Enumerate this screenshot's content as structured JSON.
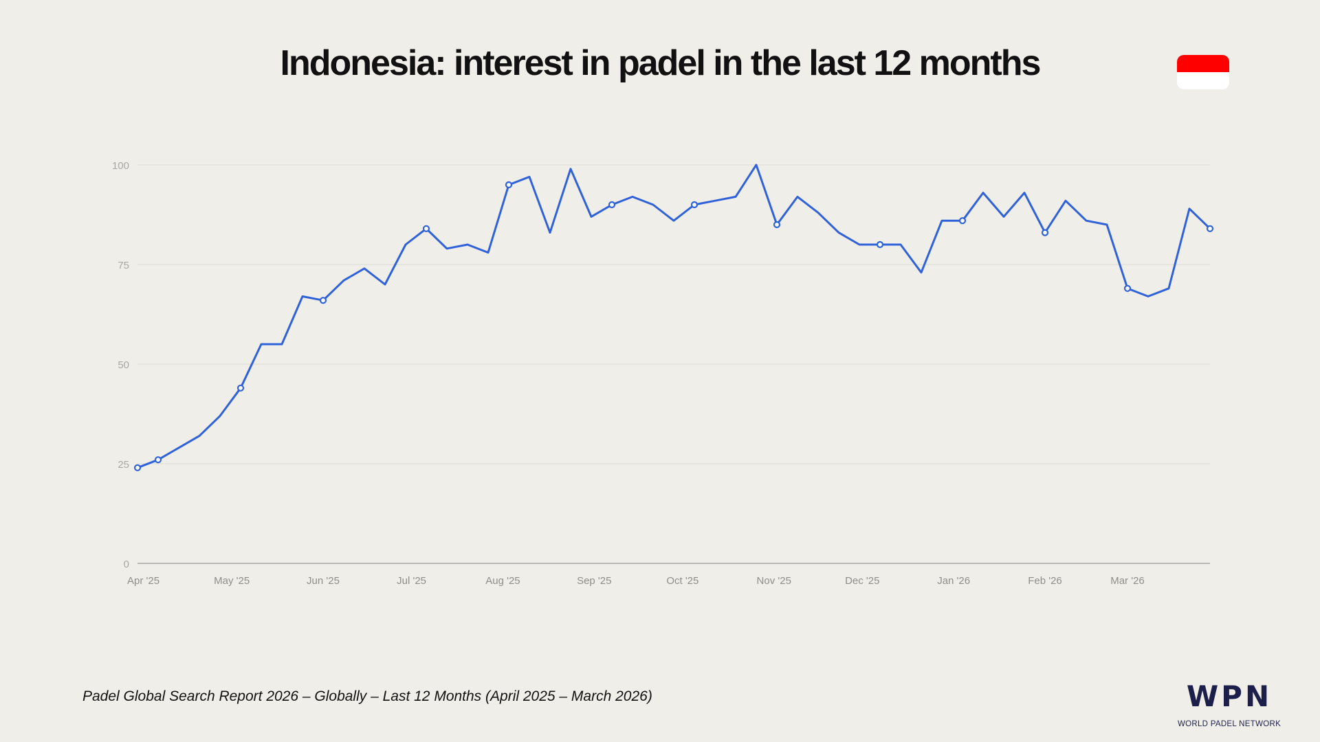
{
  "title": "Indonesia: interest in padel in the last 12 months",
  "flag": {
    "country": "Indonesia",
    "colors": [
      "#ff0000",
      "#ffffff"
    ]
  },
  "footnote": "Padel Global Search Report 2026 – Globally – Last 12 Months (April 2025 – March 2026)",
  "logo": {
    "mark": "WPN",
    "text": "WORLD PADEL NETWORK"
  },
  "chart_data": {
    "type": "line",
    "title": "",
    "xlabel": "",
    "ylabel": "",
    "ylim": [
      0,
      100
    ],
    "yticks": [
      0,
      25,
      50,
      75,
      100
    ],
    "grid": true,
    "line_color": "#2f62d9",
    "x_start": "2025-03-30",
    "x_interval": "weekly",
    "xticks": [
      {
        "date": "2025-04-01",
        "label": "Apr '25"
      },
      {
        "date": "2025-05-01",
        "label": "May '25"
      },
      {
        "date": "2025-06-01",
        "label": "Jun '25"
      },
      {
        "date": "2025-07-01",
        "label": "Jul '25"
      },
      {
        "date": "2025-08-01",
        "label": "Aug '25"
      },
      {
        "date": "2025-09-01",
        "label": "Sep '25"
      },
      {
        "date": "2025-10-01",
        "label": "Oct '25"
      },
      {
        "date": "2025-11-01",
        "label": "Nov '25"
      },
      {
        "date": "2025-12-01",
        "label": "Dec '25"
      },
      {
        "date": "2026-01-01",
        "label": "Jan '26"
      },
      {
        "date": "2026-02-01",
        "label": "Feb '26"
      },
      {
        "date": "2026-03-01",
        "label": "Mar '26"
      }
    ],
    "values": [
      24,
      26,
      29,
      32,
      37,
      44,
      55,
      55,
      67,
      66,
      71,
      74,
      70,
      80,
      84,
      79,
      80,
      78,
      95,
      97,
      83,
      99,
      87,
      90,
      92,
      90,
      86,
      90,
      91,
      92,
      100,
      85,
      92,
      88,
      83,
      80,
      80,
      80,
      73,
      86,
      86,
      93,
      87,
      93,
      83,
      91,
      86,
      85,
      69,
      67,
      69,
      89,
      84
    ],
    "marker_indices": [
      0,
      1,
      5,
      9,
      14,
      18,
      23,
      27,
      31,
      36,
      40,
      44,
      48,
      52
    ]
  }
}
